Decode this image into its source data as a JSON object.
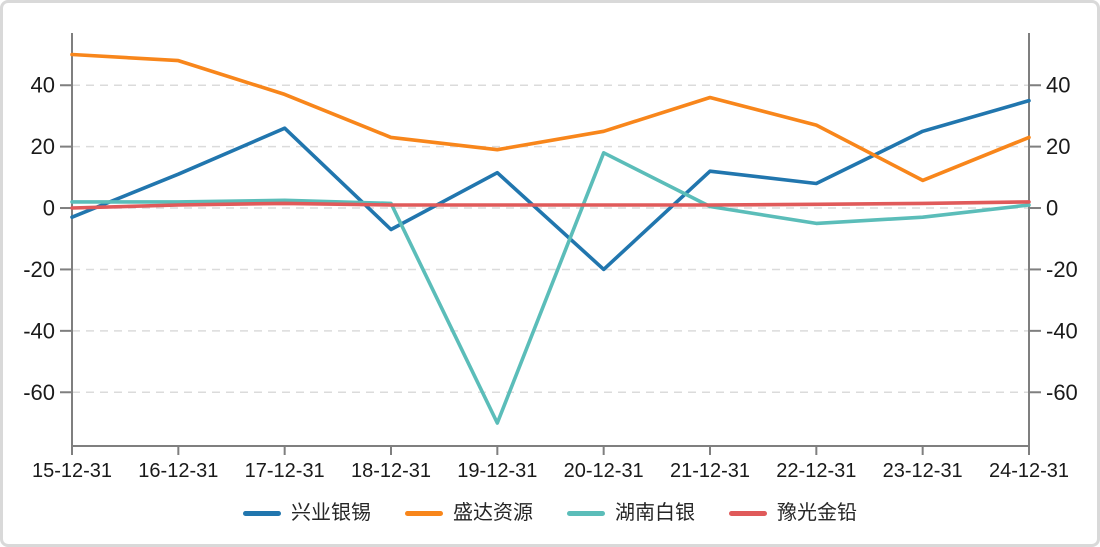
{
  "chart_data": {
    "type": "line",
    "title": "",
    "categories": [
      "15-12-31",
      "16-12-31",
      "17-12-31",
      "18-12-31",
      "19-12-31",
      "20-12-31",
      "21-12-31",
      "22-12-31",
      "23-12-31",
      "24-12-31"
    ],
    "series": [
      {
        "name": "兴业银锡",
        "color": "#2176AE",
        "values": [
          -3,
          11,
          26,
          -7,
          11.5,
          -20,
          12,
          8,
          25,
          35
        ]
      },
      {
        "name": "盛达资源",
        "color": "#F8861B",
        "values": [
          50,
          48,
          37,
          23,
          19,
          25,
          36,
          27,
          9,
          23
        ]
      },
      {
        "name": "湖南白银",
        "color": "#5BBDB9",
        "values": [
          2,
          2,
          2.5,
          1.5,
          -70,
          18,
          0.5,
          -5,
          -3,
          1
        ]
      },
      {
        "name": "豫光金铅",
        "color": "#E05A5A",
        "values": [
          0,
          1,
          1.5,
          1,
          1,
          1,
          1,
          1.2,
          1.5,
          2
        ]
      }
    ],
    "xlabel": "",
    "ylabel": "",
    "yticks": [
      40,
      20,
      0,
      -20,
      -40,
      -60
    ],
    "ylim": [
      -77.5,
      57
    ],
    "y_axis_sides": "left and right (mirrored tick labels)",
    "grid": "horizontal dashed lines at each y tick",
    "legend_position": "bottom-center",
    "colors": {
      "axis": "#7F7F7F",
      "grid": "#DBDBDB",
      "tick_text": "#1A1A1A",
      "frame": "#D9D9D9",
      "background": "#FFFFFF"
    }
  }
}
